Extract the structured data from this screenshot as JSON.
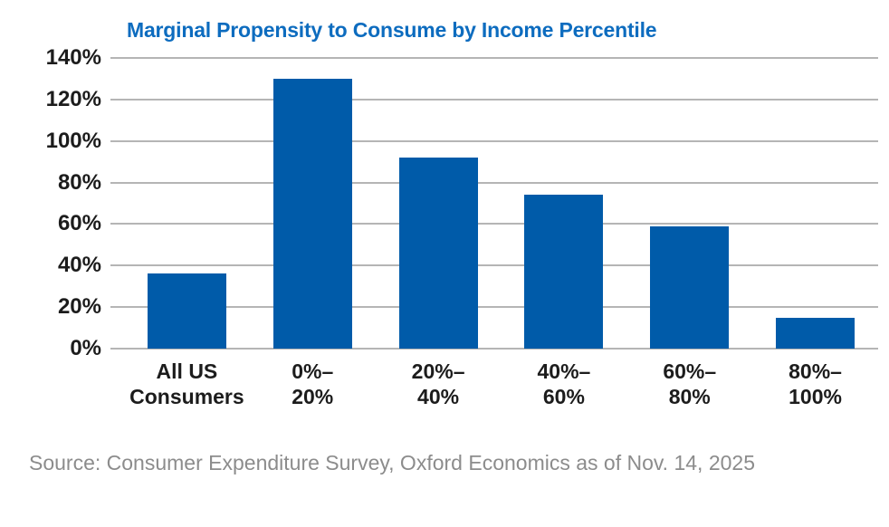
{
  "title": "Marginal Propensity to Consume by Income Percentile",
  "source_note": "Source: Consumer Expenditure Survey, Oxford Economics as of Nov. 14, 2025",
  "colors": {
    "title": "#0d6cbf",
    "bar": "#005ba9",
    "grid": "#b5b5b5",
    "axis_label": "#1c1c1c",
    "source_text": "#8c8c8c",
    "background": "#ffffff"
  },
  "chart_data": {
    "type": "bar",
    "title": "Marginal Propensity to Consume by Income Percentile",
    "categories": [
      "All US Consumers",
      "0%–20%",
      "20%–40%",
      "40%–60%",
      "60%–80%",
      "80%–100%"
    ],
    "category_display_lines": [
      [
        "All US",
        "Consumers"
      ],
      [
        "0%–",
        "20%"
      ],
      [
        "20%–",
        "40%"
      ],
      [
        "40%–",
        "60%"
      ],
      [
        "60%–",
        "80%"
      ],
      [
        "80%–",
        "100%"
      ]
    ],
    "values": [
      36,
      130,
      92,
      74,
      59,
      15
    ],
    "unit": "%",
    "xlabel": "",
    "ylabel": "",
    "ylim": [
      0,
      140
    ],
    "y_tick_step": 20,
    "y_tick_labels": [
      "0%",
      "20%",
      "40%",
      "60%",
      "80%",
      "100%",
      "120%",
      "140%"
    ],
    "grid": true,
    "legend": false,
    "bar_color": "#005ba9"
  }
}
